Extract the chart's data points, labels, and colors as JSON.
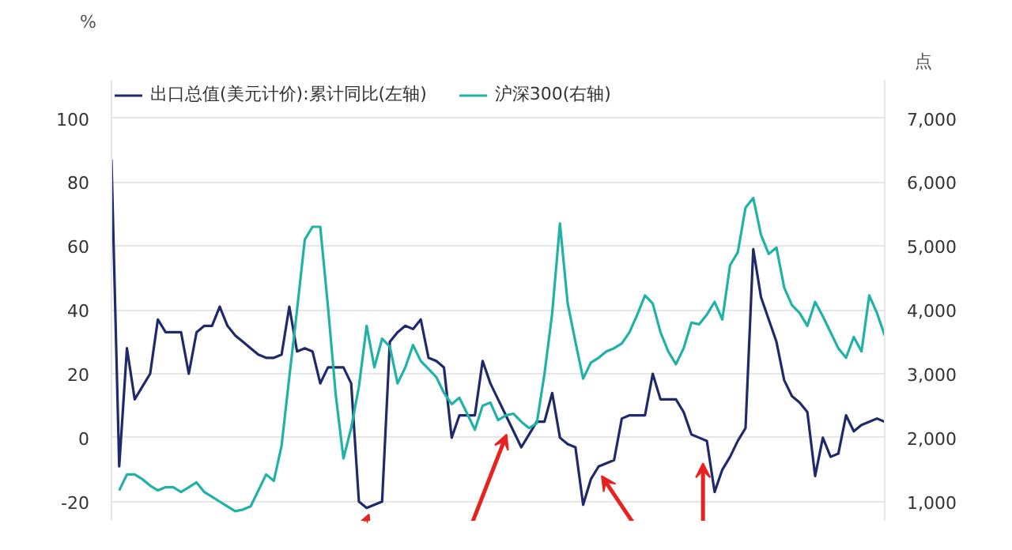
{
  "chart_data": {
    "type": "line",
    "ylabel": "%",
    "y2label": "点",
    "ylim": [
      -26,
      112
    ],
    "yticks": [
      -20,
      0,
      20,
      40,
      60,
      80,
      100
    ],
    "y2lim": [
      700,
      7600
    ],
    "y2ticks": [
      {
        "value": 1000,
        "label": "1,000"
      },
      {
        "value": 2000,
        "label": "2,000"
      },
      {
        "value": 3000,
        "label": "3,000"
      },
      {
        "value": 4000,
        "label": "4,000"
      },
      {
        "value": 5000,
        "label": "5,000"
      },
      {
        "value": 6000,
        "label": "6,000"
      },
      {
        "value": 7000,
        "label": "7,000"
      }
    ],
    "grid": "y",
    "legend": "top left",
    "tick_labels": "y",
    "line_style": "solid",
    "categories": [
      null,
      null,
      null,
      null,
      null,
      null,
      null,
      null,
      null,
      null,
      null,
      null,
      null,
      null,
      null,
      null,
      null,
      null,
      null,
      null,
      null,
      null,
      null,
      null,
      null,
      null,
      null,
      null,
      null,
      null,
      null,
      null,
      null,
      null,
      null,
      null,
      null,
      null,
      null,
      null,
      null,
      null,
      null,
      null,
      null,
      null,
      null,
      null,
      null,
      null,
      null,
      null,
      null,
      null,
      null,
      null,
      null,
      null,
      null,
      null,
      null,
      null,
      null,
      null,
      null,
      null,
      null,
      null,
      null,
      null,
      null,
      null,
      null,
      null,
      null,
      null,
      null,
      null,
      null,
      null,
      null,
      null,
      null,
      null,
      null,
      null,
      null,
      null,
      null,
      null,
      null,
      null,
      null,
      null,
      null,
      null,
      null,
      null,
      null,
      null,
      null
    ],
    "series": [
      {
        "name": "出口总值(美元计价):累计同比(左轴)",
        "color": "#1f2a6b",
        "values": [
          87,
          -9,
          28,
          12,
          16,
          20,
          37,
          33,
          33,
          33,
          20,
          33,
          35,
          35,
          41,
          35,
          32,
          30,
          28,
          26,
          25,
          25,
          26,
          41,
          27,
          28,
          27,
          17,
          22,
          22,
          22,
          17,
          -20,
          -22,
          -21,
          -20,
          30,
          33,
          35,
          34,
          37,
          25,
          24,
          22,
          0,
          7,
          7,
          7,
          24,
          17,
          12,
          7,
          2,
          -3,
          1,
          5,
          5,
          14,
          0,
          -2,
          -3,
          -21,
          -13,
          -9,
          -8,
          -7,
          6,
          7,
          7,
          7,
          20,
          12,
          12,
          12,
          8,
          1,
          0,
          -1,
          -17,
          -10,
          -6,
          -1,
          3,
          59,
          44,
          37,
          30,
          18,
          13,
          11,
          8,
          -12,
          0,
          -6,
          -5,
          7,
          2,
          4,
          5,
          6,
          5
        ]
      },
      {
        "name": "沪深300(右轴)",
        "color": "#20b2a6",
        "axis": "y2",
        "values": [
          null,
          1175,
          1425,
          1425,
          1350,
          1250,
          1175,
          1225,
          1225,
          1150,
          1225,
          1300,
          1150,
          1075,
          1000,
          925,
          850,
          875,
          925,
          1175,
          1425,
          1325,
          1875,
          2950,
          4000,
          5100,
          5300,
          5300,
          4050,
          2675,
          1675,
          2150,
          2800,
          3750,
          3100,
          3550,
          3425,
          2850,
          3100,
          3450,
          3200,
          3075,
          2950,
          2700,
          2525,
          2625,
          2375,
          2125,
          2500,
          2550,
          2275,
          2350,
          2375,
          2250,
          2150,
          2225,
          3000,
          3950,
          5350,
          4100,
          3500,
          2925,
          3175,
          3250,
          3350,
          3400,
          3475,
          3650,
          3925,
          4225,
          4100,
          3650,
          3350,
          3150,
          3400,
          3800,
          3775,
          3925,
          4125,
          3850,
          4700,
          4900,
          5600,
          5750,
          5175,
          4875,
          4975,
          4350,
          4075,
          3950,
          3750,
          4125,
          3900,
          3650,
          3400,
          3250,
          3575,
          3350,
          4225,
          3950,
          3600
        ]
      }
    ]
  }
}
